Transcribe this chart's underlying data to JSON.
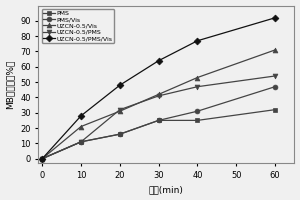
{
  "x": [
    0,
    10,
    20,
    30,
    40,
    60
  ],
  "series": [
    {
      "label": "PMS",
      "marker": "s",
      "values": [
        0,
        11,
        16,
        25,
        25,
        32
      ],
      "color": "#444444",
      "linestyle": "-"
    },
    {
      "label": "PMS/Vis",
      "marker": "o",
      "values": [
        0,
        11,
        16,
        25,
        31,
        47
      ],
      "color": "#444444",
      "linestyle": "-"
    },
    {
      "label": "UZCN-0.5/Vis",
      "marker": "^",
      "values": [
        0,
        21,
        31,
        42,
        53,
        71
      ],
      "color": "#444444",
      "linestyle": "-"
    },
    {
      "label": "UZCN-0.5/PMS",
      "marker": "v",
      "values": [
        0,
        11,
        32,
        41,
        47,
        54
      ],
      "color": "#444444",
      "linestyle": "-"
    },
    {
      "label": "UZCN-0.5/PMS/Vis",
      "marker": "D",
      "values": [
        0,
        28,
        48,
        64,
        77,
        92
      ],
      "color": "#111111",
      "linestyle": "-"
    }
  ],
  "xlabel": "时间(min)",
  "ylabel": "MB去除率（%）",
  "xlim": [
    -1,
    65
  ],
  "ylim": [
    -3,
    100
  ],
  "xticks": [
    0,
    10,
    20,
    30,
    40,
    50,
    60
  ],
  "yticks": [
    0,
    10,
    20,
    30,
    40,
    50,
    60,
    70,
    80,
    90
  ]
}
